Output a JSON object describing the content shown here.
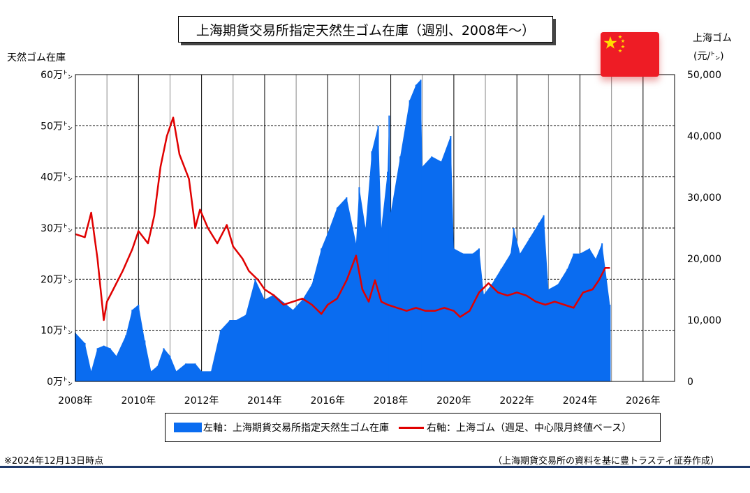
{
  "title": "上海期貨交易所指定天然生ゴム在庫（週別、2008年～）",
  "left_axis_title": "天然ゴム在庫",
  "right_axis_title_line1": "上海ゴム",
  "right_axis_title_line2": "(元/㌧)",
  "legend": {
    "bar_label": "左軸：上海期貨交易所指定天然生ゴム在庫",
    "line_label": "右軸：上海ゴム（週足、中心限月終値ベース）"
  },
  "footnote_left": "※2024年12月13日時点",
  "footnote_right": "（上海期貨交易所の資料を基に豊トラスティ証券作成）",
  "colors": {
    "bar": "#0a6cf0",
    "line": "#e00000",
    "flag": "#ee1c25",
    "star": "#ffde00"
  },
  "flag_icon": "china-flag-icon",
  "chart_data": {
    "type": "bar+line",
    "x_ticks": [
      "2008年",
      "2010年",
      "2012年",
      "2014年",
      "2016年",
      "2018年",
      "2020年",
      "2022年",
      "2024年",
      "2026年"
    ],
    "x_range": [
      2008,
      2027
    ],
    "left_axis": {
      "ticks": [
        "0万㌧",
        "10万㌧",
        "20万㌧",
        "30万㌧",
        "40万㌧",
        "50万㌧",
        "60万㌧"
      ],
      "range": [
        0,
        60
      ]
    },
    "right_axis": {
      "ticks": [
        "0",
        "10,000",
        "20,000",
        "30,000",
        "40,000",
        "50,000"
      ],
      "range": [
        0,
        50000
      ]
    },
    "grid": true,
    "series": [
      {
        "name": "左軸：上海期貨交易所指定天然生ゴム在庫",
        "type": "bar",
        "axis": "left",
        "x": [
          2008.0,
          2008.3,
          2008.5,
          2008.7,
          2008.9,
          2009.1,
          2009.3,
          2009.6,
          2009.8,
          2010.0,
          2010.2,
          2010.4,
          2010.6,
          2010.8,
          2011.0,
          2011.2,
          2011.5,
          2011.8,
          2012.0,
          2012.3,
          2012.6,
          2012.9,
          2013.1,
          2013.4,
          2013.7,
          2014.0,
          2014.3,
          2014.6,
          2014.9,
          2015.2,
          2015.5,
          2015.8,
          2016.0,
          2016.3,
          2016.6,
          2016.9,
          2017.0,
          2017.2,
          2017.4,
          2017.6,
          2017.7,
          2017.9,
          2017.95,
          2018.0,
          2018.3,
          2018.6,
          2018.8,
          2018.95,
          2019.0,
          2019.3,
          2019.6,
          2019.9,
          2020.0,
          2020.3,
          2020.6,
          2020.8,
          2020.95,
          2021.2,
          2021.5,
          2021.8,
          2021.9,
          2022.1,
          2022.4,
          2022.7,
          2022.85,
          2023.0,
          2023.3,
          2023.6,
          2023.8,
          2024.0,
          2024.3,
          2024.5,
          2024.7,
          2024.95
        ],
        "y": [
          9.5,
          7.5,
          2,
          6.5,
          7,
          6.5,
          5,
          9,
          14,
          15,
          8,
          2,
          3,
          6.5,
          5,
          2,
          3.5,
          3.5,
          2,
          2,
          10,
          12,
          12,
          13,
          20,
          16,
          17,
          15.5,
          14,
          16,
          19,
          26,
          29,
          34,
          36,
          27,
          38,
          30,
          45,
          50,
          30,
          41,
          52,
          33,
          44,
          55,
          58,
          59,
          42,
          44,
          43,
          48,
          26,
          25,
          25,
          26,
          17,
          19,
          22,
          25,
          30,
          25,
          28,
          31,
          32.5,
          18,
          19,
          22,
          25,
          25,
          26,
          24,
          27,
          15
        ]
      },
      {
        "name": "右軸：上海ゴム（週足、中心限月終値ベース）",
        "type": "line",
        "axis": "right",
        "x": [
          2008.0,
          2008.3,
          2008.5,
          2008.7,
          2008.9,
          2009.0,
          2009.2,
          2009.5,
          2009.8,
          2010.0,
          2010.3,
          2010.5,
          2010.7,
          2010.9,
          2011.1,
          2011.3,
          2011.6,
          2011.8,
          2011.95,
          2012.2,
          2012.5,
          2012.8,
          2013.0,
          2013.3,
          2013.5,
          2013.8,
          2014.0,
          2014.3,
          2014.6,
          2014.9,
          2015.2,
          2015.5,
          2015.8,
          2016.0,
          2016.3,
          2016.6,
          2016.9,
          2017.1,
          2017.3,
          2017.5,
          2017.7,
          2017.9,
          2018.2,
          2018.5,
          2018.8,
          2019.1,
          2019.4,
          2019.7,
          2020.0,
          2020.2,
          2020.5,
          2020.8,
          2021.1,
          2021.4,
          2021.7,
          2022.0,
          2022.3,
          2022.6,
          2022.9,
          2023.2,
          2023.5,
          2023.8,
          2024.1,
          2024.4,
          2024.6,
          2024.8,
          2024.95
        ],
        "y": [
          24000,
          23500,
          27500,
          20000,
          10000,
          13000,
          15000,
          18000,
          21500,
          24500,
          22500,
          27000,
          35000,
          40000,
          43000,
          37000,
          33000,
          25000,
          28000,
          25000,
          22500,
          25500,
          22000,
          20000,
          18000,
          16500,
          15000,
          14000,
          12500,
          13000,
          13500,
          12500,
          11000,
          12500,
          13500,
          16500,
          20500,
          15000,
          13000,
          16500,
          13000,
          12500,
          12000,
          11500,
          12000,
          11500,
          11500,
          12000,
          11500,
          10500,
          11500,
          14500,
          16000,
          14500,
          14000,
          14500,
          14000,
          13000,
          12500,
          13000,
          12500,
          12000,
          14500,
          15000,
          16500,
          18500,
          18500
        ]
      }
    ]
  }
}
